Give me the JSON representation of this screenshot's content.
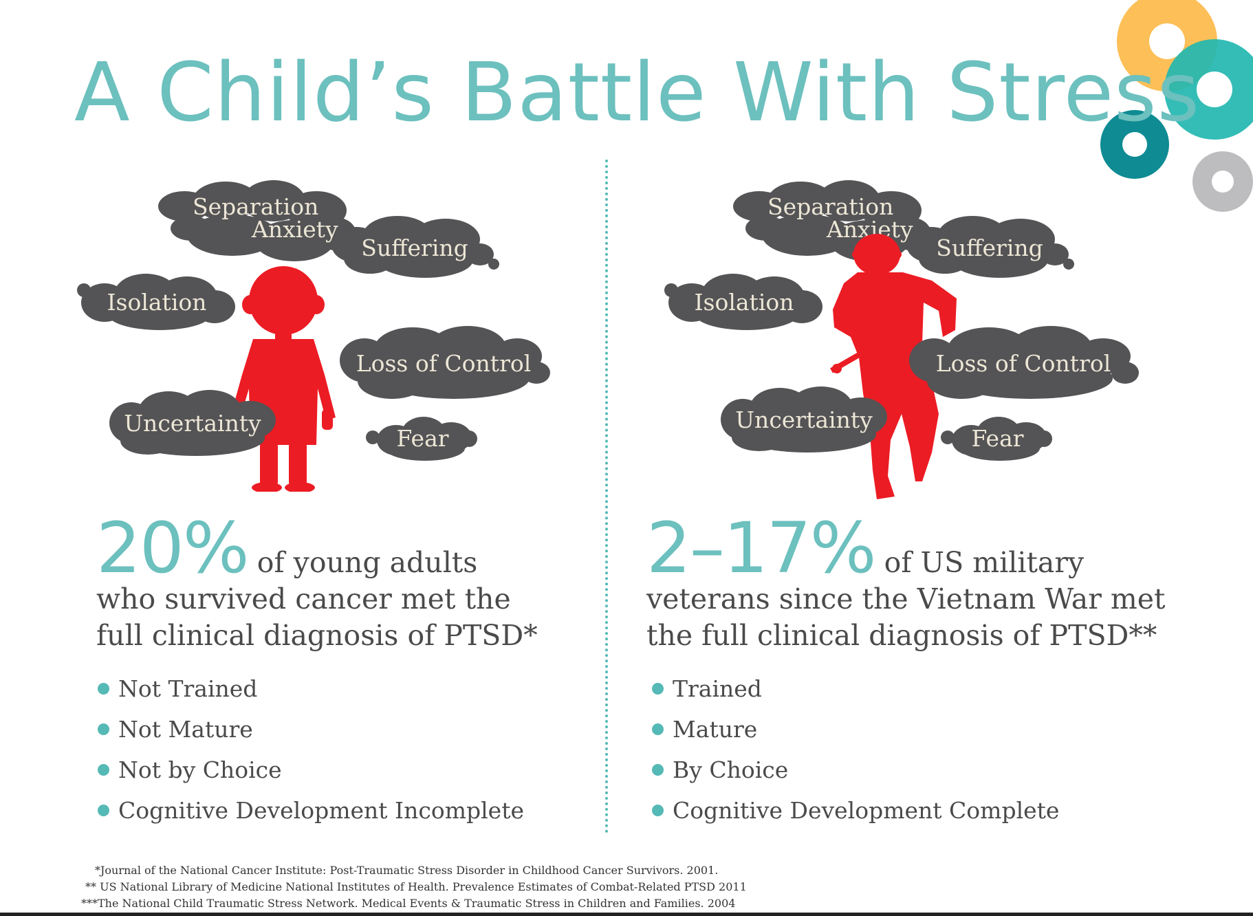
{
  "title": "A Child’s Battle With Stress",
  "colors": {
    "teal": "#6cc0be",
    "cloud": "#545355",
    "cloud_text": "#ece6d6",
    "figure_red": "#ec1c24",
    "deco_orange": "#fdbf57",
    "deco_teal_light": "#22b7b0",
    "deco_teal_dark": "#0e8b93",
    "deco_gray": "#bdbdbf"
  },
  "icons": [
    "child-silhouette-icon",
    "soldier-silhouette-icon",
    "decorative-rings-icon"
  ],
  "left": {
    "clouds": {
      "separation": "Separation",
      "anxiety": "Anxiety",
      "suffering": "Suffering",
      "isolation": "Isolation",
      "loss": "Loss of Control",
      "uncertainty": "Uncertainty",
      "fear": "Fear"
    },
    "stat_value": "20%",
    "stat_line1": "of young adults",
    "stat_line2": "who survived cancer met the",
    "stat_line3": "full clinical diagnosis of PTSD*",
    "bullets": [
      "Not Trained",
      "Not Mature",
      "Not by Choice",
      "Cognitive Development Incomplete"
    ]
  },
  "right": {
    "clouds": {
      "separation": "Separation",
      "anxiety": "Anxiety",
      "suffering": "Suffering",
      "isolation": "Isolation",
      "loss": "Loss of Control",
      "uncertainty": "Uncertainty",
      "fear": "Fear"
    },
    "stat_value": "2–17%",
    "stat_line1": "of US military",
    "stat_line2": "veterans since the Vietnam War met",
    "stat_line3": "the full clinical diagnosis of PTSD**",
    "bullets": [
      "Trained",
      "Mature",
      "By Choice",
      "Cognitive Development Complete"
    ]
  },
  "footnotes": [
    "*Journal of the National Cancer Institute: Post-Traumatic Stress Disorder in Childhood Cancer Survivors. 2001.",
    "** US National Library of Medicine National Institutes of Health. Prevalence Estimates of Combat-Related PTSD 2011",
    "***The National Child Traumatic Stress Network. Medical Events & Traumatic Stress in Children and Families. 2004"
  ]
}
